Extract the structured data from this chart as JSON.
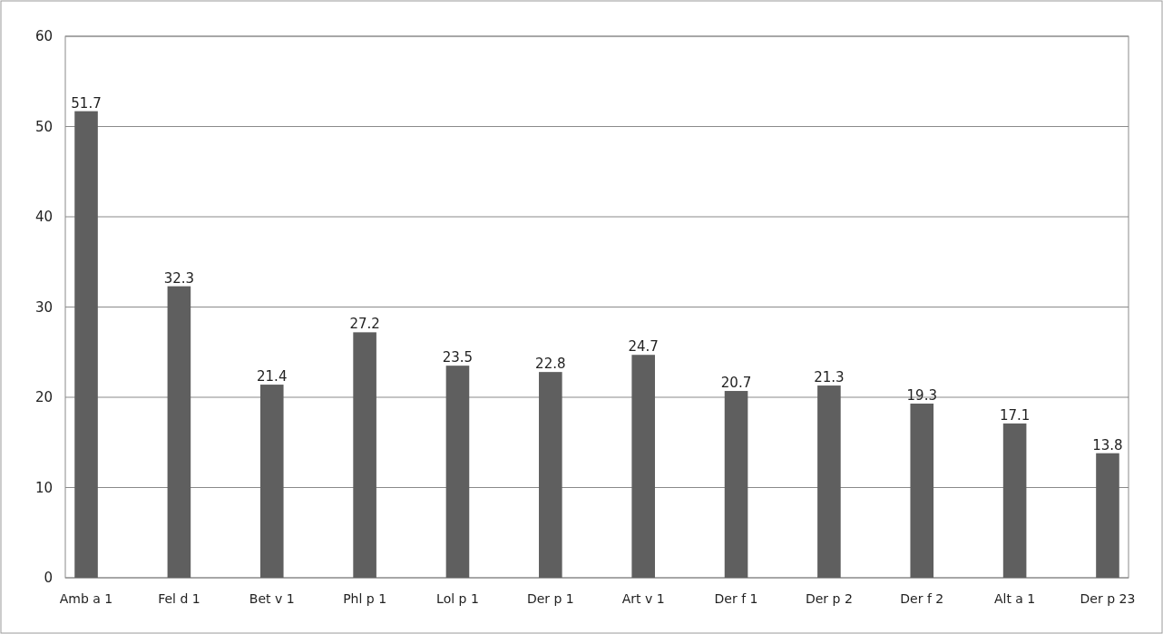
{
  "chart_data": {
    "type": "bar",
    "categories": [
      "Amb a 1",
      "Fel d 1",
      "Bet v 1",
      "Phl p 1",
      "Lol p 1",
      "Der p 1",
      "Art v 1",
      "Der f 1",
      "Der p 2",
      "Der f 2",
      "Alt a 1",
      "Der p 23"
    ],
    "values": [
      51.7,
      32.3,
      21.4,
      27.2,
      23.5,
      22.8,
      24.7,
      20.7,
      21.3,
      19.3,
      17.1,
      13.8
    ],
    "color": "#5f5f5f",
    "ylim": [
      0,
      60
    ],
    "yticks": [
      0,
      10,
      20,
      30,
      40,
      50,
      60
    ],
    "grid": "y",
    "data_labels": true
  }
}
